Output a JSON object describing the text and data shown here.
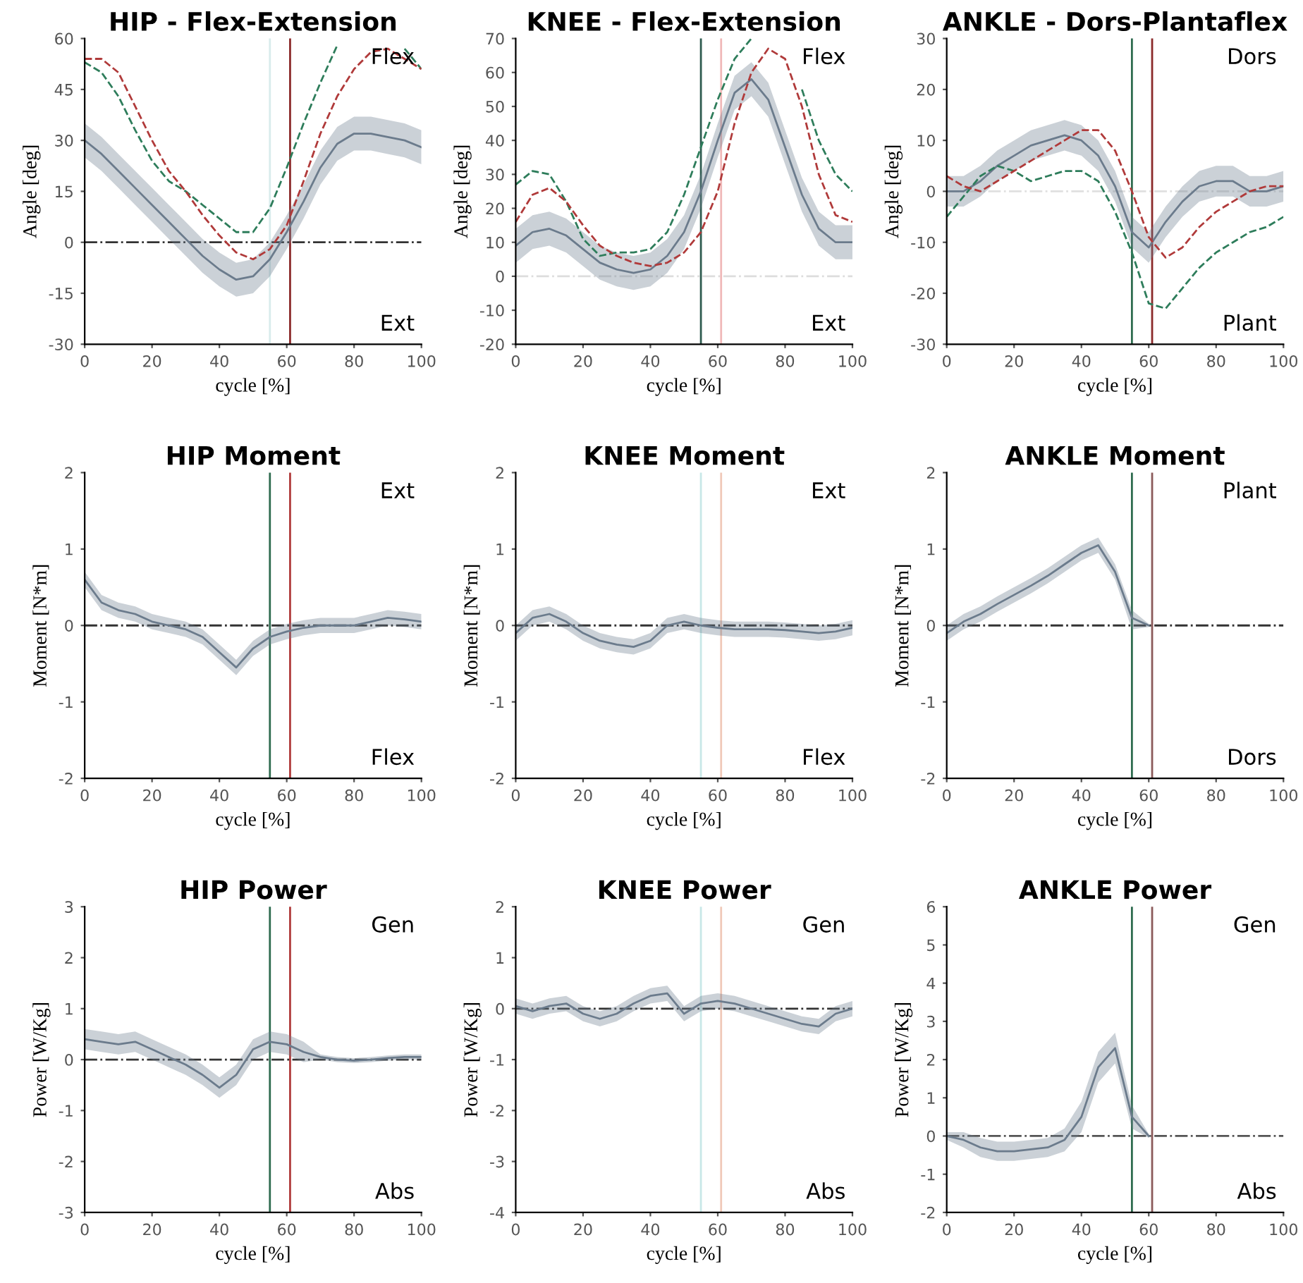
{
  "chart_data": [
    {
      "type": "line",
      "title": "HIP - Flex-Extension",
      "xlabel": "cycle [%]",
      "ylabel": "Angle [deg]",
      "annotations": [
        "Flex",
        "Ext"
      ],
      "x": [
        0,
        5,
        10,
        15,
        20,
        25,
        30,
        35,
        40,
        45,
        50,
        55,
        60,
        65,
        70,
        75,
        80,
        85,
        90,
        95,
        100
      ],
      "xlim": [
        0,
        100
      ],
      "xticks": [
        0,
        20,
        40,
        60,
        80,
        100
      ],
      "ylim": [
        -30,
        60
      ],
      "yticks": [
        -30,
        -15,
        0,
        15,
        30,
        45,
        60
      ],
      "series": [
        {
          "color": "#6b7b8c",
          "values": [
            30,
            26,
            21,
            16,
            11,
            6,
            1,
            -4,
            -8,
            -11,
            -10,
            -5,
            3,
            12,
            22,
            29,
            32,
            32,
            31,
            30,
            28
          ],
          "lower": [
            25,
            21,
            16,
            11,
            6,
            1,
            -4,
            -9,
            -13,
            -16,
            -15,
            -10,
            -2,
            7,
            17,
            24,
            27,
            27,
            26,
            25,
            23
          ],
          "upper": [
            35,
            31,
            26,
            21,
            16,
            11,
            6,
            1,
            -3,
            -6,
            -5,
            0,
            8,
            17,
            27,
            34,
            37,
            37,
            36,
            35,
            33
          ]
        },
        {
          "color": "#2e7d5b",
          "line_style": "dashed",
          "values": [
            53,
            50,
            43,
            33,
            24,
            18,
            15,
            11,
            7,
            3,
            3,
            10,
            22,
            35,
            47,
            58,
            null,
            null,
            null,
            57,
            51
          ]
        },
        {
          "color": "#b03a3a",
          "line_style": "dashed",
          "values": [
            54,
            54,
            50,
            40,
            30,
            21,
            15,
            8,
            2,
            -3,
            -5,
            -2,
            5,
            18,
            32,
            43,
            51,
            56,
            57,
            54,
            51
          ]
        }
      ],
      "ref_lines": [
        {
          "axis": "y",
          "value": 0,
          "color": "#333333",
          "line_style": "dashdot"
        },
        {
          "axis": "x",
          "value": 55,
          "color": "#d8ecec"
        },
        {
          "axis": "x",
          "value": 61,
          "color": "#8b2a2a"
        }
      ]
    },
    {
      "type": "line",
      "title": "KNEE - Flex-Extension",
      "xlabel": "cycle [%]",
      "ylabel": "Angle [deg]",
      "annotations": [
        "Flex",
        "Ext"
      ],
      "x": [
        0,
        5,
        10,
        15,
        20,
        25,
        30,
        35,
        40,
        45,
        50,
        55,
        60,
        65,
        70,
        75,
        80,
        85,
        90,
        95,
        100
      ],
      "xlim": [
        0,
        100
      ],
      "xticks": [
        0,
        20,
        40,
        60,
        80,
        100
      ],
      "ylim": [
        -20,
        70
      ],
      "yticks": [
        -20,
        -10,
        0,
        10,
        20,
        30,
        40,
        50,
        60,
        70
      ],
      "series": [
        {
          "color": "#6b7b8c",
          "values": [
            9,
            13,
            14,
            12,
            8,
            4,
            2,
            1,
            2,
            6,
            13,
            25,
            40,
            54,
            58,
            52,
            38,
            24,
            14,
            10,
            10
          ],
          "lower": [
            4,
            8,
            9,
            7,
            3,
            -1,
            -3,
            -4,
            -3,
            1,
            8,
            20,
            35,
            49,
            53,
            47,
            33,
            19,
            9,
            5,
            5
          ],
          "upper": [
            14,
            18,
            19,
            17,
            13,
            9,
            7,
            6,
            7,
            11,
            18,
            30,
            45,
            59,
            63,
            57,
            43,
            29,
            19,
            15,
            15
          ]
        },
        {
          "color": "#2e7d5b",
          "line_style": "dashed",
          "values": [
            27,
            31,
            30,
            22,
            11,
            6,
            7,
            7,
            8,
            13,
            24,
            38,
            52,
            64,
            70,
            null,
            null,
            55,
            40,
            30,
            25
          ]
        },
        {
          "color": "#b03a3a",
          "line_style": "dashed",
          "values": [
            16,
            24,
            26,
            22,
            15,
            9,
            6,
            4,
            3,
            4,
            7,
            13,
            25,
            45,
            60,
            67,
            64,
            50,
            30,
            18,
            16
          ]
        }
      ],
      "ref_lines": [
        {
          "axis": "y",
          "value": 0,
          "color": "#dddddd",
          "line_style": "dashdot"
        },
        {
          "axis": "x",
          "value": 55,
          "color": "#2e5b4f"
        },
        {
          "axis": "x",
          "value": 61,
          "color": "#f0b8b8"
        }
      ]
    },
    {
      "type": "line",
      "title": "ANKLE - Dors-Plantaflex",
      "xlabel": "cycle [%]",
      "ylabel": "Angle [deg]",
      "annotations": [
        "Dors",
        "Plant"
      ],
      "x": [
        0,
        5,
        10,
        15,
        20,
        25,
        30,
        35,
        40,
        45,
        50,
        55,
        60,
        65,
        70,
        75,
        80,
        85,
        90,
        95,
        100
      ],
      "xlim": [
        0,
        100
      ],
      "xticks": [
        0,
        20,
        40,
        60,
        80,
        100
      ],
      "ylim": [
        -30,
        30
      ],
      "yticks": [
        -30,
        -20,
        -10,
        0,
        10,
        20,
        30
      ],
      "series": [
        {
          "color": "#6b7b8c",
          "values": [
            0,
            0,
            2,
            5,
            7,
            9,
            10,
            11,
            10,
            7,
            1,
            -8,
            -11,
            -6,
            -2,
            1,
            2,
            2,
            0,
            0,
            1
          ],
          "lower": [
            -3,
            -3,
            -1,
            2,
            4,
            6,
            7,
            8,
            7,
            4,
            -2,
            -11,
            -14,
            -9,
            -5,
            -2,
            -1,
            -1,
            -3,
            -3,
            -2
          ],
          "upper": [
            3,
            3,
            5,
            8,
            10,
            12,
            13,
            14,
            13,
            10,
            4,
            -5,
            -8,
            -3,
            1,
            4,
            5,
            5,
            3,
            3,
            4
          ]
        },
        {
          "color": "#2e7d5b",
          "line_style": "dashed",
          "values": [
            -5,
            -1,
            3,
            5,
            4,
            2,
            3,
            4,
            4,
            2,
            -4,
            -12,
            -22,
            -23,
            -19,
            -15,
            -12,
            -10,
            -8,
            -7,
            -5
          ]
        },
        {
          "color": "#b03a3a",
          "line_style": "dashed",
          "values": [
            3,
            1,
            0,
            2,
            4,
            6,
            8,
            10,
            12,
            12,
            8,
            0,
            -9,
            -13,
            -11,
            -7,
            -4,
            -2,
            0,
            1,
            1
          ]
        }
      ],
      "ref_lines": [
        {
          "axis": "y",
          "value": 0,
          "color": "#e0e0e0",
          "line_style": "dashdot"
        },
        {
          "axis": "x",
          "value": 55,
          "color": "#2e6b4f"
        },
        {
          "axis": "x",
          "value": 61,
          "color": "#8b2a2a"
        }
      ]
    },
    {
      "type": "line",
      "title": "HIP Moment",
      "xlabel": "cycle [%]",
      "ylabel": "Moment [N*m]",
      "annotations": [
        "Ext",
        "Flex"
      ],
      "x": [
        0,
        5,
        10,
        15,
        20,
        25,
        30,
        35,
        40,
        45,
        50,
        55,
        60,
        65,
        70,
        75,
        80,
        85,
        90,
        95,
        100
      ],
      "xlim": [
        0,
        100
      ],
      "xticks": [
        0,
        20,
        40,
        60,
        80,
        100
      ],
      "ylim": [
        -2,
        2
      ],
      "yticks": [
        -2,
        -1,
        0,
        1,
        2
      ],
      "series": [
        {
          "color": "#6b7b8c",
          "values": [
            0.6,
            0.3,
            0.2,
            0.15,
            0.05,
            0,
            -0.05,
            -0.15,
            -0.35,
            -0.55,
            -0.3,
            -0.15,
            -0.08,
            -0.03,
            0,
            0,
            0,
            0.05,
            0.1,
            0.08,
            0.05
          ],
          "lower": [
            0.5,
            0.2,
            0.1,
            0.05,
            -0.05,
            -0.1,
            -0.15,
            -0.25,
            -0.45,
            -0.65,
            -0.4,
            -0.25,
            -0.18,
            -0.13,
            -0.1,
            -0.1,
            -0.1,
            -0.05,
            0,
            -0.02,
            -0.05
          ],
          "upper": [
            0.7,
            0.4,
            0.3,
            0.25,
            0.15,
            0.1,
            0.05,
            -0.05,
            -0.25,
            -0.45,
            -0.2,
            -0.05,
            0.02,
            0.07,
            0.1,
            0.1,
            0.1,
            0.15,
            0.2,
            0.18,
            0.15
          ]
        }
      ],
      "ref_lines": [
        {
          "axis": "y",
          "value": 0,
          "color": "#333333",
          "line_style": "dashdot"
        },
        {
          "axis": "x",
          "value": 55,
          "color": "#2e6b4f"
        },
        {
          "axis": "x",
          "value": 61,
          "color": "#b03a3a"
        }
      ]
    },
    {
      "type": "line",
      "title": "KNEE Moment",
      "xlabel": "cycle [%]",
      "ylabel": "Moment [N*m]",
      "annotations": [
        "Ext",
        "Flex"
      ],
      "x": [
        0,
        5,
        10,
        15,
        20,
        25,
        30,
        35,
        40,
        45,
        50,
        55,
        60,
        65,
        70,
        75,
        80,
        85,
        90,
        95,
        100
      ],
      "xlim": [
        0,
        100
      ],
      "xticks": [
        0,
        20,
        40,
        60,
        80,
        100
      ],
      "ylim": [
        -2,
        2
      ],
      "yticks": [
        -2,
        -1,
        0,
        1,
        2
      ],
      "series": [
        {
          "color": "#6b7b8c",
          "values": [
            -0.1,
            0.1,
            0.15,
            0.05,
            -0.1,
            -0.2,
            -0.25,
            -0.28,
            -0.2,
            0,
            0.05,
            0,
            -0.03,
            -0.05,
            -0.05,
            -0.05,
            -0.06,
            -0.08,
            -0.1,
            -0.08,
            -0.03
          ],
          "lower": [
            -0.2,
            0,
            0.05,
            -0.05,
            -0.2,
            -0.3,
            -0.35,
            -0.38,
            -0.3,
            -0.1,
            -0.05,
            -0.1,
            -0.13,
            -0.15,
            -0.15,
            -0.15,
            -0.16,
            -0.18,
            -0.2,
            -0.18,
            -0.13
          ],
          "upper": [
            0,
            0.2,
            0.25,
            0.15,
            0,
            -0.1,
            -0.15,
            -0.18,
            -0.1,
            0.1,
            0.15,
            0.1,
            0.07,
            0.05,
            0.05,
            0.05,
            0.04,
            0.02,
            0,
            0.02,
            0.07
          ]
        }
      ],
      "ref_lines": [
        {
          "axis": "y",
          "value": 0,
          "color": "#333333",
          "line_style": "dashdot"
        },
        {
          "axis": "x",
          "value": 55,
          "color": "#c8e8e8"
        },
        {
          "axis": "x",
          "value": 61,
          "color": "#f0c8b8"
        }
      ]
    },
    {
      "type": "line",
      "title": "ANKLE Moment",
      "xlabel": "cycle [%]",
      "ylabel": "Moment [N*m]",
      "annotations": [
        "Plant",
        "Dors"
      ],
      "xlim": [
        0,
        100
      ],
      "xticks": [
        0,
        20,
        40,
        60,
        80,
        100
      ],
      "ylim": [
        -2,
        2
      ],
      "yticks": [
        -2,
        -1,
        0,
        1,
        2
      ],
      "series": [
        {
          "color": "#6b7b8c",
          "x": [
            0,
            5,
            10,
            15,
            20,
            25,
            30,
            35,
            40,
            45,
            50,
            55,
            60
          ],
          "values": [
            -0.1,
            0.05,
            0.15,
            0.28,
            0.4,
            0.52,
            0.65,
            0.8,
            0.95,
            1.05,
            0.7,
            0.1,
            0
          ],
          "lower": [
            -0.2,
            -0.05,
            0.05,
            0.18,
            0.3,
            0.42,
            0.55,
            0.7,
            0.85,
            0.95,
            0.6,
            -0.05,
            -0.02
          ],
          "upper": [
            0,
            0.15,
            0.25,
            0.38,
            0.5,
            0.62,
            0.75,
            0.9,
            1.05,
            1.15,
            0.8,
            0.2,
            0.02
          ]
        }
      ],
      "ref_lines": [
        {
          "axis": "y",
          "value": 0,
          "color": "#333333",
          "line_style": "dashdot"
        },
        {
          "axis": "x",
          "value": 55,
          "color": "#2e6b4f"
        },
        {
          "axis": "x",
          "value": 61,
          "color": "#8b5a5a"
        }
      ]
    },
    {
      "type": "line",
      "title": "HIP Power",
      "xlabel": "cycle [%]",
      "ylabel": "Power [W/Kg]",
      "annotations": [
        "Gen",
        "Abs"
      ],
      "x": [
        0,
        5,
        10,
        15,
        20,
        25,
        30,
        35,
        40,
        45,
        50,
        55,
        60,
        65,
        70,
        75,
        80,
        85,
        90,
        95,
        100
      ],
      "xlim": [
        0,
        100
      ],
      "xticks": [
        0,
        20,
        40,
        60,
        80,
        100
      ],
      "ylim": [
        -3,
        3
      ],
      "yticks": [
        -3,
        -2,
        -1,
        0,
        1,
        2,
        3
      ],
      "series": [
        {
          "color": "#6b7b8c",
          "values": [
            0.4,
            0.35,
            0.3,
            0.35,
            0.2,
            0.05,
            -0.1,
            -0.3,
            -0.55,
            -0.3,
            0.2,
            0.35,
            0.3,
            0.15,
            0.05,
            0,
            -0.02,
            0,
            0.03,
            0.05,
            0.05
          ],
          "lower": [
            0.2,
            0.15,
            0.1,
            0.15,
            0,
            -0.15,
            -0.3,
            -0.5,
            -0.75,
            -0.5,
            0,
            0.15,
            0.1,
            -0.05,
            0,
            -0.05,
            -0.07,
            -0.05,
            -0.02,
            0,
            0
          ],
          "upper": [
            0.6,
            0.55,
            0.5,
            0.55,
            0.4,
            0.25,
            0.1,
            -0.1,
            -0.35,
            -0.1,
            0.4,
            0.55,
            0.5,
            0.35,
            0.1,
            0.05,
            0.03,
            0.05,
            0.08,
            0.1,
            0.1
          ]
        }
      ],
      "ref_lines": [
        {
          "axis": "y",
          "value": 0,
          "color": "#333333",
          "line_style": "dashdot"
        },
        {
          "axis": "x",
          "value": 55,
          "color": "#2e6b4f"
        },
        {
          "axis": "x",
          "value": 61,
          "color": "#b03a3a"
        }
      ]
    },
    {
      "type": "line",
      "title": "KNEE Power",
      "xlabel": "cycle [%]",
      "ylabel": "Power [W/Kg]",
      "annotations": [
        "Gen",
        "Abs"
      ],
      "x": [
        0,
        5,
        10,
        15,
        20,
        25,
        30,
        35,
        40,
        45,
        50,
        55,
        60,
        65,
        70,
        75,
        80,
        85,
        90,
        95,
        100
      ],
      "xlim": [
        0,
        100
      ],
      "xticks": [
        0,
        20,
        40,
        60,
        80,
        100
      ],
      "ylim": [
        -4,
        2
      ],
      "yticks": [
        -4,
        -3,
        -2,
        -1,
        0,
        1,
        2
      ],
      "series": [
        {
          "color": "#6b7b8c",
          "values": [
            0.05,
            -0.05,
            0.05,
            0.1,
            -0.1,
            -0.2,
            -0.1,
            0.1,
            0.25,
            0.3,
            -0.1,
            0.1,
            0.15,
            0.1,
            0,
            -0.1,
            -0.2,
            -0.3,
            -0.35,
            -0.1,
            0
          ],
          "lower": [
            -0.1,
            -0.2,
            -0.1,
            -0.05,
            -0.25,
            -0.35,
            -0.25,
            -0.05,
            0.1,
            0.15,
            -0.25,
            -0.05,
            0,
            -0.05,
            -0.15,
            -0.25,
            -0.35,
            -0.45,
            -0.5,
            -0.25,
            -0.15
          ],
          "upper": [
            0.2,
            0.1,
            0.2,
            0.25,
            0.05,
            -0.05,
            0.05,
            0.25,
            0.4,
            0.45,
            0.05,
            0.25,
            0.3,
            0.25,
            0.15,
            0.05,
            -0.05,
            -0.15,
            -0.2,
            0.05,
            0.15
          ]
        }
      ],
      "ref_lines": [
        {
          "axis": "y",
          "value": 0,
          "color": "#333333",
          "line_style": "dashdot"
        },
        {
          "axis": "x",
          "value": 55,
          "color": "#c8e8e8"
        },
        {
          "axis": "x",
          "value": 61,
          "color": "#f0c8b8"
        }
      ]
    },
    {
      "type": "line",
      "title": "ANKLE Power",
      "xlabel": "cycle [%]",
      "ylabel": "Power [W/Kg]",
      "annotations": [
        "Gen",
        "Abs"
      ],
      "xlim": [
        0,
        100
      ],
      "xticks": [
        0,
        20,
        40,
        60,
        80,
        100
      ],
      "ylim": [
        -2,
        6
      ],
      "yticks": [
        -2,
        -1,
        0,
        1,
        2,
        3,
        4,
        5,
        6
      ],
      "series": [
        {
          "color": "#6b7b8c",
          "x": [
            0,
            5,
            10,
            15,
            20,
            25,
            30,
            35,
            40,
            45,
            50,
            55,
            60
          ],
          "values": [
            0,
            -0.1,
            -0.3,
            -0.4,
            -0.4,
            -0.35,
            -0.3,
            -0.1,
            0.5,
            1.8,
            2.3,
            0.5,
            0
          ],
          "lower": [
            -0.1,
            -0.3,
            -0.55,
            -0.65,
            -0.65,
            -0.6,
            -0.55,
            -0.4,
            0.1,
            1.4,
            1.9,
            0.2,
            -0.05
          ],
          "upper": [
            0.1,
            0.1,
            -0.05,
            -0.15,
            -0.15,
            -0.1,
            -0.05,
            0.2,
            0.9,
            2.2,
            2.7,
            0.8,
            0.05
          ]
        }
      ],
      "ref_lines": [
        {
          "axis": "y",
          "value": 0,
          "color": "#555555",
          "line_style": "dashdot"
        },
        {
          "axis": "x",
          "value": 55,
          "color": "#2e6b4f"
        },
        {
          "axis": "x",
          "value": 61,
          "color": "#8b5a5a"
        }
      ]
    }
  ]
}
